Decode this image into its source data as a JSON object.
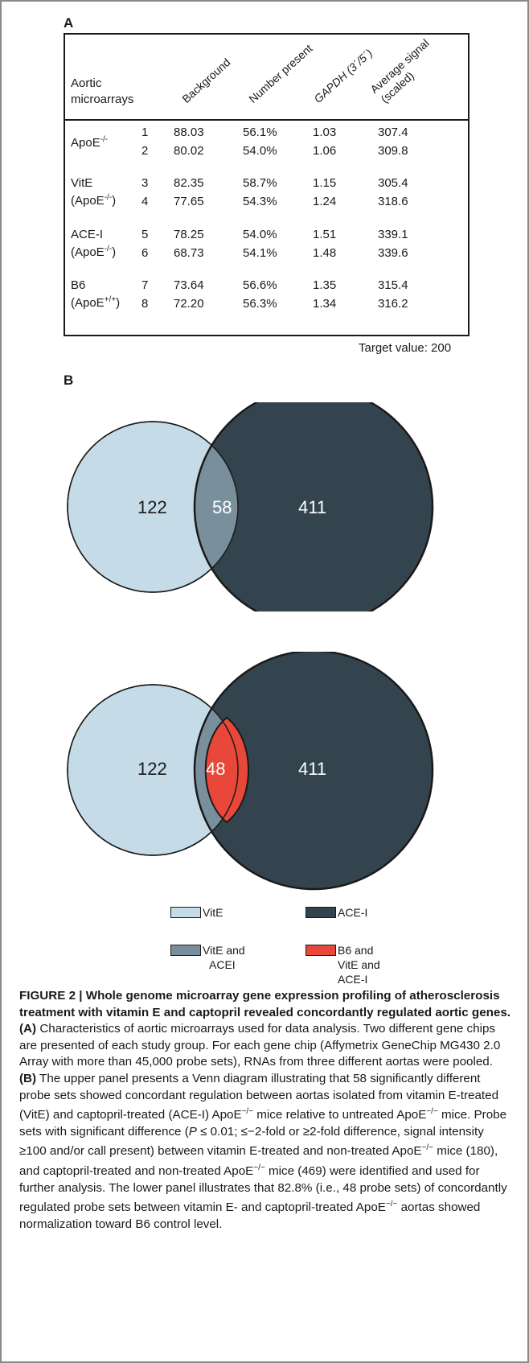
{
  "panel_a": {
    "label": "A",
    "row_header_line1": "Aortic",
    "row_header_line2": "microarrays",
    "columns": [
      "Background",
      "Number present",
      "GAPDH (3´/5´)",
      "Average signal",
      "(scaled)"
    ],
    "groups": [
      {
        "name": "ApoE",
        "sup": "-/-",
        "sub": "",
        "sub_sup": "",
        "rows": [
          [
            "1",
            "88.03",
            "56.1%",
            "1.03",
            "307.4"
          ],
          [
            "2",
            "80.02",
            "54.0%",
            "1.06",
            "309.8"
          ]
        ]
      },
      {
        "name": "VitE",
        "sup": "",
        "sub": "(ApoE",
        "sub_sup": "-/-",
        "rows": [
          [
            "3",
            "82.35",
            "58.7%",
            "1.15",
            "305.4"
          ],
          [
            "4",
            "77.65",
            "54.3%",
            "1.24",
            "318.6"
          ]
        ]
      },
      {
        "name": "ACE-I",
        "sup": "",
        "sub": "(ApoE",
        "sub_sup": "-/-",
        "rows": [
          [
            "5",
            "78.25",
            "54.0%",
            "1.51",
            "339.1"
          ],
          [
            "6",
            "68.73",
            "54.1%",
            "1.48",
            "339.6"
          ]
        ]
      },
      {
        "name": "B6",
        "sup": "",
        "sub": "(ApoE",
        "sub_sup": "+/+",
        "rows": [
          [
            "7",
            "73.64",
            "56.6%",
            "1.35",
            "315.4"
          ],
          [
            "8",
            "72.20",
            "56.3%",
            "1.34",
            "316.2"
          ]
        ]
      }
    ],
    "target_value": "Target value: 200"
  },
  "panel_b": {
    "label": "B",
    "upper": {
      "vite_only": "122",
      "overlap": "58",
      "acei_only": "411"
    },
    "lower": {
      "vite_only": "122",
      "b6_overlap": "48",
      "acei_only": "411"
    },
    "colors": {
      "vite": "#c5dbe7",
      "acei": "#34444f",
      "overlap": "#7a8f9c",
      "b6": "#e8473a"
    },
    "legend": {
      "vite": "VitE",
      "acei": "ACE-I",
      "vite_acei_l1": "VitE and",
      "vite_acei_l2": "ACEI",
      "b6_l1": "B6 and",
      "b6_l2": "VitE and",
      "b6_l3": "ACE-I"
    }
  },
  "caption": {
    "title": "FIGURE 2 | Whole genome microarray gene expression profiling of atherosclerosis treatment with vitamin E and captopril revealed concordantly regulated aortic genes.",
    "a_label": "(A)",
    "a_text": " Characteristics of aortic microarrays used for data analysis. Two different gene chips are presented of each study group. For each gene chip (Affymetrix GeneChip MG430 2.0 Array with more than 45,000 probe sets), RNAs from three different aortas were pooled. ",
    "b_label": "(B)",
    "b_text_1": " The upper panel presents a Venn diagram illustrating that 58 significantly different probe sets showed concordant regulation between aortas isolated from vitamin E-treated (VitE) and captopril-treated (ACE-I) ApoE",
    "b_text_2": " mice relative to untreated ApoE",
    "b_text_3": " mice. Probe sets with significant difference (",
    "b_p": "P",
    "b_text_4": " ≤ 0.01; ≤−2-fold or ≥2-fold difference, signal intensity ≥100 and/or call present) between vitamin E-treated and non-treated ApoE",
    "b_text_5": " mice (180), and captopril-treated and non-treated ApoE",
    "b_text_6": " mice (469) were identified and used for further analysis. The lower panel illustrates that 82.8% (i.e., 48 probe sets) of concordantly regulated probe sets between vitamin E- and captopril-treated ApoE",
    "b_text_7": " aortas showed normalization toward B6 control level.",
    "sup_ko": "−/−"
  }
}
